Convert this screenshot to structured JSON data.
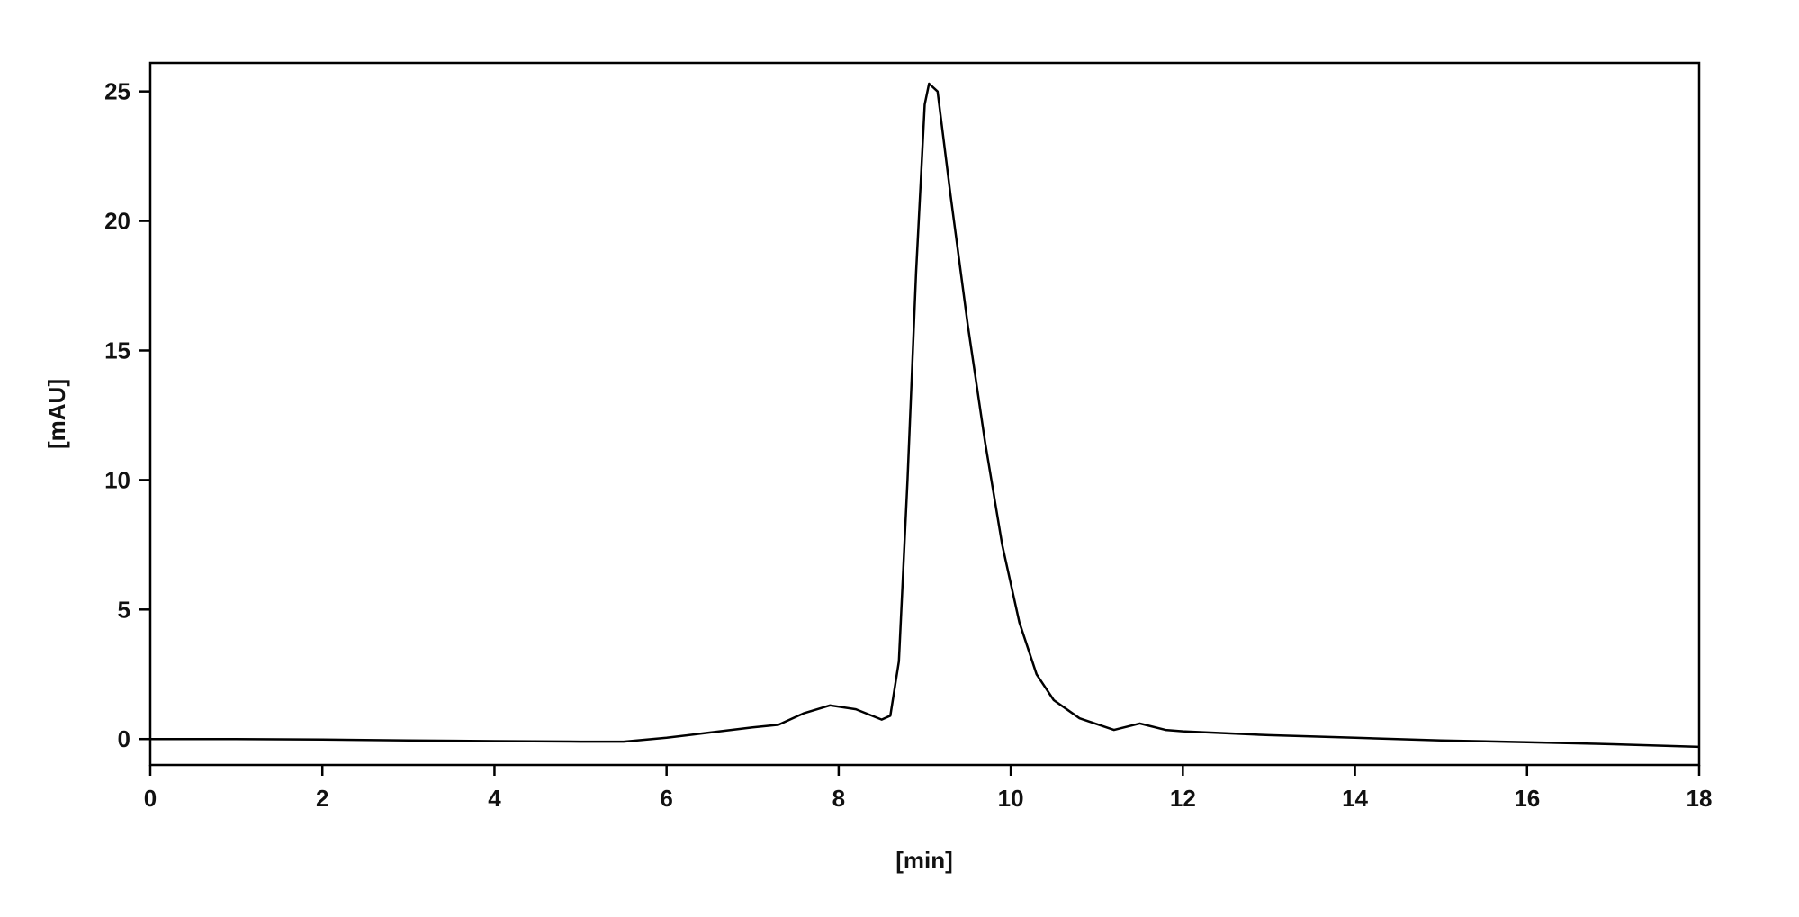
{
  "chart_data": {
    "type": "line",
    "x_label": "[min]",
    "y_label": "[mAU]",
    "x": [
      0,
      1,
      2,
      3,
      4,
      5,
      5.5,
      6,
      6.5,
      7,
      7.3,
      7.6,
      7.9,
      8.2,
      8.5,
      8.6,
      8.7,
      8.8,
      8.9,
      9.0,
      9.05,
      9.15,
      9.3,
      9.5,
      9.7,
      9.9,
      10.1,
      10.3,
      10.5,
      10.8,
      11.2,
      11.5,
      11.8,
      12,
      13,
      14,
      15,
      16,
      17,
      18
    ],
    "series": [
      {
        "color": "#000000",
        "values": [
          0,
          0,
          -0.02,
          -0.05,
          -0.08,
          -0.1,
          -0.1,
          0.05,
          0.25,
          0.45,
          0.55,
          1.0,
          1.3,
          1.15,
          0.75,
          0.9,
          3,
          10,
          18,
          24.5,
          25.3,
          25.0,
          21,
          16,
          11.5,
          7.5,
          4.5,
          2.5,
          1.5,
          0.8,
          0.35,
          0.6,
          0.35,
          0.3,
          0.15,
          0.05,
          -0.05,
          -0.12,
          -0.2,
          -0.3
        ]
      }
    ],
    "xlim": [
      0,
      18
    ],
    "xticks": [
      0,
      2,
      4,
      6,
      8,
      10,
      12,
      14,
      16,
      18
    ],
    "ylim": [
      -1,
      26.1
    ],
    "yticks": [
      0,
      5,
      10,
      15,
      20,
      25
    ]
  }
}
